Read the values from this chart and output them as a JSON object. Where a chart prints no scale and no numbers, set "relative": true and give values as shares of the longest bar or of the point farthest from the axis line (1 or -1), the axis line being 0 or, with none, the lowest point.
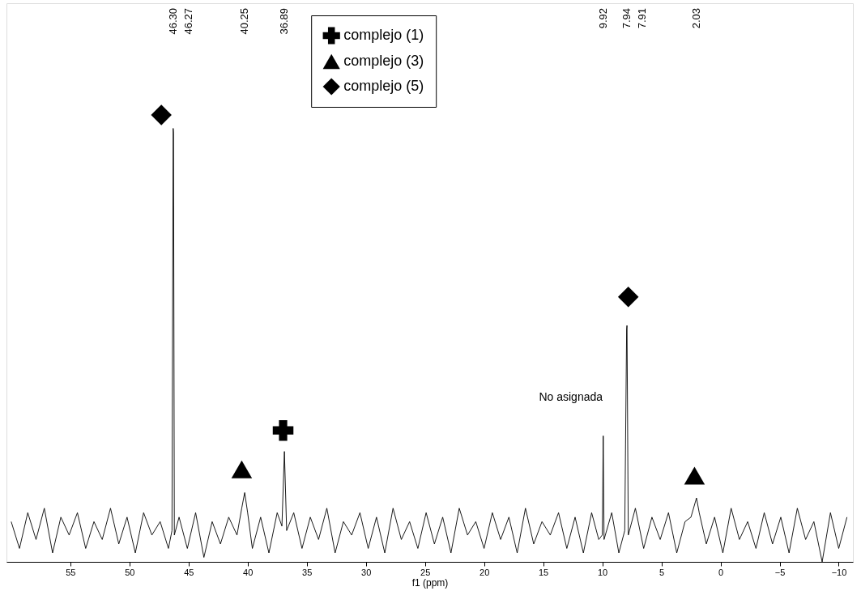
{
  "chart_data": {
    "type": "line",
    "relative": true,
    "xlabel": "f1 (ppm)",
    "xlim": [
      60.4,
      -11.2
    ],
    "xticks": [
      55,
      50,
      45,
      40,
      35,
      30,
      25,
      20,
      15,
      10,
      5,
      0,
      -5,
      -10
    ],
    "grid": false,
    "legend": "top",
    "line_style": "solid",
    "annotations": [
      "46.30",
      "46.27",
      "40.25",
      "36.89",
      "9.92",
      "7.94",
      "7.91",
      "2.03",
      {
        "text": "No asignada",
        "x": 9.92,
        "y": 0.282
      }
    ],
    "series": [
      {
        "color": "#000000",
        "x": [
          60.0,
          59.3,
          58.6,
          57.9,
          57.2,
          56.5,
          55.8,
          55.1,
          54.4,
          53.7,
          53.0,
          52.3,
          51.6,
          50.9,
          50.2,
          49.5,
          48.8,
          48.1,
          47.4,
          46.7,
          46.4,
          46.3,
          46.27,
          46.2,
          45.8,
          45.1,
          44.4,
          43.7,
          43.0,
          42.3,
          41.6,
          40.9,
          40.5,
          40.25,
          40.0,
          39.6,
          38.9,
          38.2,
          37.5,
          37.1,
          36.89,
          36.7,
          36.1,
          35.4,
          34.7,
          34.0,
          33.3,
          32.6,
          31.9,
          31.2,
          30.5,
          29.8,
          29.1,
          28.4,
          27.7,
          27.0,
          26.3,
          25.6,
          24.9,
          24.2,
          23.5,
          22.8,
          22.1,
          21.4,
          20.7,
          20.0,
          19.3,
          18.6,
          17.9,
          17.2,
          16.5,
          15.8,
          15.1,
          14.4,
          13.7,
          13.0,
          12.3,
          11.6,
          10.9,
          10.3,
          10.0,
          9.92,
          9.85,
          9.2,
          8.6,
          8.1,
          7.94,
          7.91,
          7.8,
          7.2,
          6.5,
          5.8,
          5.1,
          4.4,
          3.7,
          3.0,
          2.5,
          2.03,
          1.8,
          1.2,
          0.5,
          -0.2,
          -0.9,
          -1.6,
          -2.3,
          -3.0,
          -3.7,
          -4.4,
          -5.1,
          -5.8,
          -6.5,
          -7.2,
          -7.9,
          -8.6,
          -9.3,
          -10.0,
          -10.7
        ],
        "values": [
          0.09,
          0.03,
          0.11,
          0.05,
          0.12,
          0.02,
          0.1,
          0.06,
          0.11,
          0.03,
          0.09,
          0.05,
          0.12,
          0.04,
          0.1,
          0.02,
          0.11,
          0.06,
          0.09,
          0.03,
          0.07,
          0.97,
          0.96,
          0.06,
          0.1,
          0.03,
          0.11,
          0.01,
          0.09,
          0.04,
          0.1,
          0.06,
          0.12,
          0.155,
          0.11,
          0.03,
          0.1,
          0.02,
          0.11,
          0.08,
          0.247,
          0.07,
          0.11,
          0.03,
          0.1,
          0.05,
          0.12,
          0.02,
          0.09,
          0.06,
          0.11,
          0.03,
          0.1,
          0.02,
          0.12,
          0.05,
          0.09,
          0.03,
          0.11,
          0.04,
          0.1,
          0.02,
          0.12,
          0.06,
          0.09,
          0.03,
          0.11,
          0.05,
          0.1,
          0.02,
          0.12,
          0.04,
          0.09,
          0.06,
          0.11,
          0.03,
          0.1,
          0.02,
          0.11,
          0.05,
          0.06,
          0.282,
          0.05,
          0.11,
          0.02,
          0.07,
          0.52,
          0.529,
          0.06,
          0.12,
          0.03,
          0.1,
          0.05,
          0.11,
          0.02,
          0.09,
          0.1,
          0.143,
          0.11,
          0.04,
          0.1,
          0.02,
          0.12,
          0.05,
          0.09,
          0.03,
          0.11,
          0.04,
          0.1,
          0.02,
          0.12,
          0.05,
          0.09,
          0.0,
          0.11,
          0.03,
          0.1
        ]
      },
      {
        "type": "scatter",
        "name": "complejo (1)",
        "color": "#000000",
        "marker": "cross",
        "x": [
          37.0
        ],
        "values": [
          0.294
        ]
      },
      {
        "type": "scatter",
        "name": "complejo (3)",
        "color": "#000000",
        "marker": "triangle",
        "x": [
          40.5,
          2.2
        ],
        "values": [
          0.207,
          0.193
        ]
      },
      {
        "type": "scatter",
        "name": "complejo (5)",
        "color": "#000000",
        "marker": "diamond",
        "x": [
          47.3,
          7.8
        ],
        "values": [
          1.0,
          0.593
        ]
      }
    ]
  }
}
